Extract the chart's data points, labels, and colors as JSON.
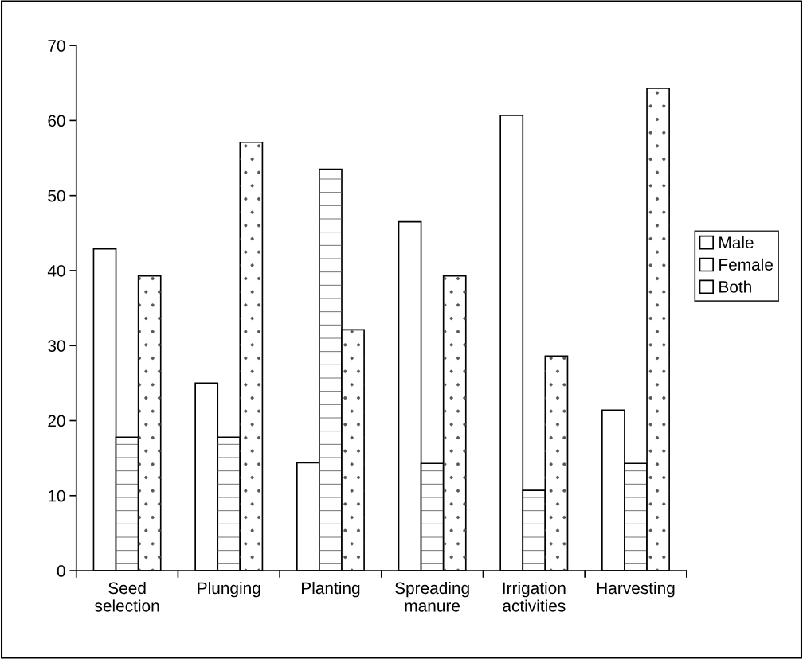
{
  "chart_data": {
    "type": "bar",
    "categories": [
      "Seed\nselection",
      "Plunging",
      "Planting",
      "Spreading\nmanure",
      "Irrigation\nactivities",
      "Harvesting"
    ],
    "series": [
      {
        "name": "Male",
        "color": "#ffffff",
        "values": [
          42.9,
          25.0,
          14.4,
          46.5,
          60.7,
          21.4
        ]
      },
      {
        "name": "Female",
        "color": "#ffffff",
        "values": [
          17.8,
          17.8,
          53.5,
          14.3,
          10.7,
          14.3
        ]
      },
      {
        "name": "Both",
        "color": "#ffffff",
        "values": [
          39.3,
          57.1,
          32.1,
          39.3,
          28.6,
          64.3
        ]
      }
    ],
    "ylim": [
      0,
      70
    ],
    "yticks": [
      0,
      10,
      20,
      30,
      40,
      50,
      60,
      70
    ],
    "grid": false,
    "legend": "right"
  }
}
